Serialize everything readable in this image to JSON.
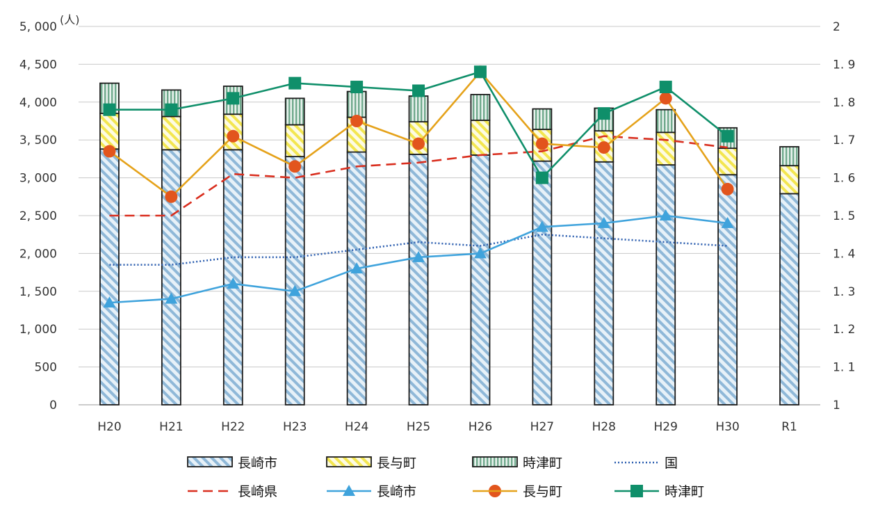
{
  "chart_data": {
    "type": "bar",
    "title": "",
    "categories": [
      "H20",
      "H21",
      "H22",
      "H23",
      "H24",
      "H25",
      "H26",
      "H27",
      "H28",
      "H29",
      "H30",
      "R1"
    ],
    "y_left": {
      "unit_label": "(人)",
      "range": [
        0,
        5000
      ],
      "ticks": [
        0,
        500,
        1000,
        1500,
        2000,
        2500,
        3000,
        3500,
        4000,
        4500,
        5000
      ],
      "tick_labels": [
        "0",
        "500",
        "1, 000",
        "1, 500",
        "2, 000",
        "2, 500",
        "3, 000",
        "3, 500",
        "4, 000",
        "4, 500",
        "5, 000"
      ]
    },
    "y_right": {
      "range": [
        1,
        2
      ],
      "ticks": [
        1,
        1.1,
        1.2,
        1.3,
        1.4,
        1.5,
        1.6,
        1.7,
        1.8,
        1.9,
        2
      ],
      "tick_labels": [
        "1",
        "1. 1",
        "1. 2",
        "1. 3",
        "1. 4",
        "1. 5",
        "1. 6",
        "1. 7",
        "1. 8",
        "1. 9",
        "2"
      ]
    },
    "grid": true,
    "legend_position": "bottom",
    "stacked_bars": [
      {
        "name": "長崎市",
        "axis": "left",
        "color": "#8fb8d8",
        "pattern": "diagonal-stripes",
        "values": [
          3380,
          3370,
          3370,
          3280,
          3340,
          3310,
          3300,
          3220,
          3210,
          3170,
          3040,
          2790
        ]
      },
      {
        "name": "長与町",
        "axis": "left",
        "color": "#f3e650",
        "pattern": "diagonal-stripes",
        "values": [
          470,
          440,
          470,
          420,
          460,
          430,
          460,
          420,
          410,
          430,
          350,
          370
        ]
      },
      {
        "name": "時津町",
        "axis": "left",
        "color": "#6fa98c",
        "pattern": "vertical-stripes",
        "values": [
          400,
          350,
          370,
          350,
          340,
          340,
          340,
          270,
          300,
          300,
          270,
          250
        ]
      }
    ],
    "line_series": [
      {
        "name": "国",
        "axis": "right",
        "color": "#2d5fb0",
        "style": "dotted",
        "marker": "none",
        "values": [
          1.37,
          1.37,
          1.39,
          1.39,
          1.41,
          1.43,
          1.42,
          1.45,
          1.44,
          1.43,
          1.42,
          null
        ]
      },
      {
        "name": "長崎県",
        "axis": "right",
        "color": "#d92e1e",
        "style": "dashed",
        "marker": "none",
        "values": [
          1.5,
          1.5,
          1.61,
          1.6,
          1.63,
          1.64,
          1.66,
          1.67,
          1.71,
          1.7,
          1.68,
          null
        ]
      },
      {
        "name": "長崎市",
        "axis": "right",
        "color": "#3fa3dc",
        "style": "solid",
        "marker": "triangle",
        "values": [
          1.27,
          1.28,
          1.32,
          1.3,
          1.36,
          1.39,
          1.4,
          1.47,
          1.48,
          1.5,
          1.48,
          null
        ]
      },
      {
        "name": "長与町",
        "axis": "right",
        "color": "#e5a21a",
        "style": "solid",
        "marker": "circle",
        "marker_color": "#e2551d",
        "values": [
          1.67,
          1.55,
          1.71,
          1.63,
          1.75,
          1.69,
          1.88,
          1.69,
          1.68,
          1.81,
          1.57,
          null
        ]
      },
      {
        "name": "時津町",
        "axis": "right",
        "color": "#0f8f6a",
        "style": "solid",
        "marker": "square",
        "values": [
          1.78,
          1.78,
          1.81,
          1.85,
          1.84,
          1.83,
          1.88,
          1.6,
          1.77,
          1.84,
          1.71,
          null
        ]
      }
    ],
    "legend": [
      {
        "label": "長崎市",
        "kind": "bar",
        "ref": "bar-0"
      },
      {
        "label": "長与町",
        "kind": "bar",
        "ref": "bar-1"
      },
      {
        "label": "時津町",
        "kind": "bar",
        "ref": "bar-2"
      },
      {
        "label": "国",
        "kind": "line",
        "ref": "line-0"
      },
      {
        "label": "長崎県",
        "kind": "line",
        "ref": "line-1"
      },
      {
        "label": "長崎市",
        "kind": "line",
        "ref": "line-2"
      },
      {
        "label": "長与町",
        "kind": "line",
        "ref": "line-3"
      },
      {
        "label": "時津町",
        "kind": "line",
        "ref": "line-4"
      }
    ]
  }
}
